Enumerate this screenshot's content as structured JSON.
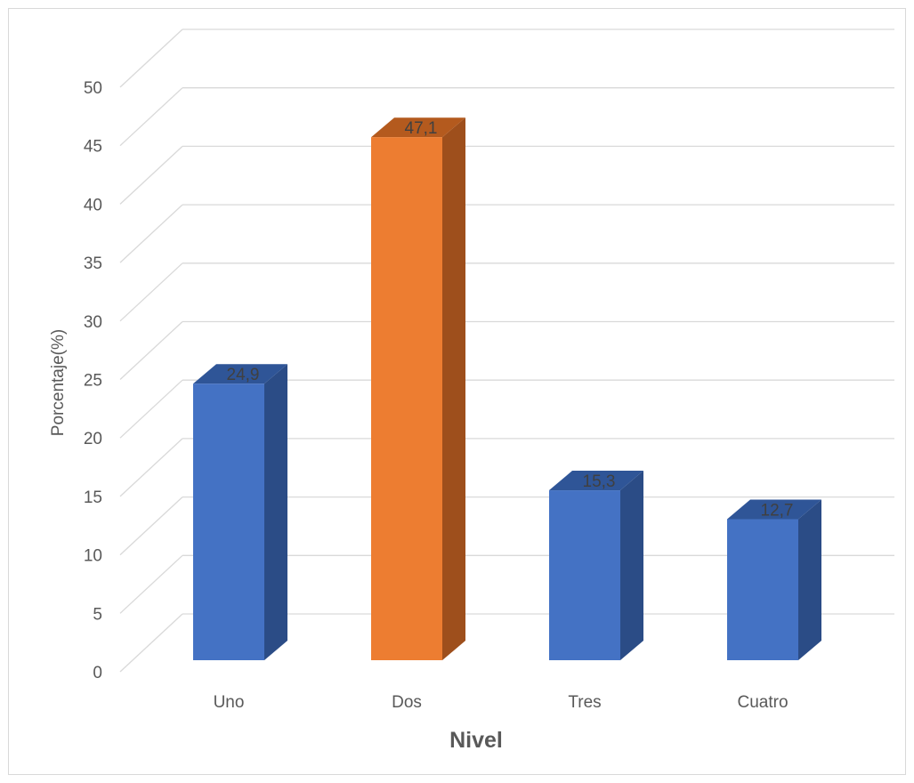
{
  "chart_data": {
    "type": "bar",
    "three_d": true,
    "categories": [
      "Uno",
      "Dos",
      "Tres",
      "Cuatro"
    ],
    "values": [
      24.9,
      47.1,
      15.3,
      12.7
    ],
    "value_labels": [
      "24,9",
      "47,1",
      "15,3",
      "12,7"
    ],
    "highlight_index": 1,
    "title": "",
    "xlabel": "Nivel",
    "ylabel": "Porcentaje(%)",
    "ylim": [
      0,
      50
    ],
    "y_ticks": [
      "0",
      "5",
      "10",
      "15",
      "20",
      "25",
      "30",
      "35",
      "40",
      "45",
      "50"
    ],
    "grid": true,
    "legend": "none",
    "colors": {
      "bar_front": "#4472C4",
      "bar_side": "#2B4C86",
      "bar_top": "#2F5597",
      "highlight_front": "#ED7D31",
      "highlight_side": "#9E4F1C",
      "highlight_top": "#B45A1E",
      "grid": "#D9D9D9"
    }
  }
}
